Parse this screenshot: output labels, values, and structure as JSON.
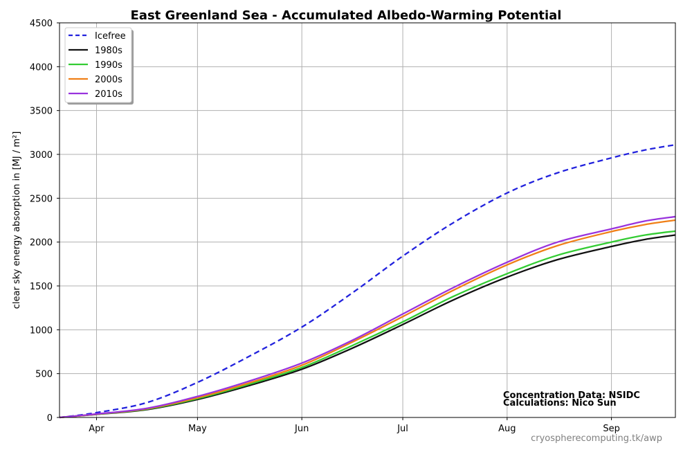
{
  "chart_data": {
    "type": "line",
    "title": "East Greenland Sea - Accumulated Albedo-Warming Potential",
    "ylabel": "clear sky energy absorption in  [MJ / m²]",
    "xlabel": "",
    "ylim": [
      0,
      4500
    ],
    "yticks": [
      0,
      500,
      1000,
      1500,
      2000,
      2500,
      3000,
      3500,
      4000,
      4500
    ],
    "xlim": [
      81,
      264
    ],
    "xticks": [
      {
        "label": "Apr",
        "day": 92
      },
      {
        "label": "May",
        "day": 122
      },
      {
        "label": "Jun",
        "day": 153
      },
      {
        "label": "Jul",
        "day": 183
      },
      {
        "label": "Aug",
        "day": 214
      },
      {
        "label": "Sep",
        "day": 245
      }
    ],
    "grid": true,
    "legend_position": "top-left",
    "series": [
      {
        "name": "Icefree",
        "color": "#2222dd",
        "dashed": true,
        "points": [
          [
            81,
            0
          ],
          [
            92,
            55
          ],
          [
            107,
            170
          ],
          [
            122,
            400
          ],
          [
            137,
            690
          ],
          [
            153,
            1030
          ],
          [
            168,
            1420
          ],
          [
            183,
            1840
          ],
          [
            198,
            2220
          ],
          [
            214,
            2560
          ],
          [
            229,
            2790
          ],
          [
            245,
            2960
          ],
          [
            255,
            3050
          ],
          [
            264,
            3110
          ]
        ]
      },
      {
        "name": "1980s",
        "color": "#111111",
        "dashed": false,
        "points": [
          [
            81,
            0
          ],
          [
            92,
            35
          ],
          [
            107,
            90
          ],
          [
            122,
            205
          ],
          [
            137,
            360
          ],
          [
            153,
            550
          ],
          [
            168,
            790
          ],
          [
            183,
            1060
          ],
          [
            198,
            1340
          ],
          [
            214,
            1600
          ],
          [
            229,
            1800
          ],
          [
            245,
            1950
          ],
          [
            255,
            2030
          ],
          [
            264,
            2080
          ]
        ]
      },
      {
        "name": "1990s",
        "color": "#33cc33",
        "dashed": false,
        "points": [
          [
            81,
            0
          ],
          [
            92,
            37
          ],
          [
            107,
            95
          ],
          [
            122,
            215
          ],
          [
            137,
            375
          ],
          [
            153,
            570
          ],
          [
            168,
            820
          ],
          [
            183,
            1090
          ],
          [
            198,
            1380
          ],
          [
            214,
            1640
          ],
          [
            229,
            1850
          ],
          [
            245,
            2000
          ],
          [
            255,
            2080
          ],
          [
            264,
            2125
          ]
        ]
      },
      {
        "name": "2000s",
        "color": "#f07f17",
        "dashed": false,
        "points": [
          [
            81,
            0
          ],
          [
            92,
            38
          ],
          [
            107,
            100
          ],
          [
            122,
            225
          ],
          [
            137,
            390
          ],
          [
            153,
            595
          ],
          [
            168,
            860
          ],
          [
            183,
            1150
          ],
          [
            198,
            1450
          ],
          [
            214,
            1740
          ],
          [
            229,
            1960
          ],
          [
            245,
            2120
          ],
          [
            255,
            2200
          ],
          [
            264,
            2250
          ]
        ]
      },
      {
        "name": "2010s",
        "color": "#9933dd",
        "dashed": false,
        "points": [
          [
            81,
            0
          ],
          [
            92,
            40
          ],
          [
            107,
            105
          ],
          [
            122,
            240
          ],
          [
            137,
            410
          ],
          [
            153,
            620
          ],
          [
            168,
            880
          ],
          [
            183,
            1180
          ],
          [
            198,
            1480
          ],
          [
            214,
            1770
          ],
          [
            229,
            2000
          ],
          [
            245,
            2150
          ],
          [
            255,
            2240
          ],
          [
            264,
            2290
          ]
        ]
      }
    ]
  },
  "annotation": {
    "line1": "Concentration Data: NSIDC",
    "line2": "Calculations: Nico Sun"
  },
  "credit": "cryospherecomputing.tk/awp"
}
